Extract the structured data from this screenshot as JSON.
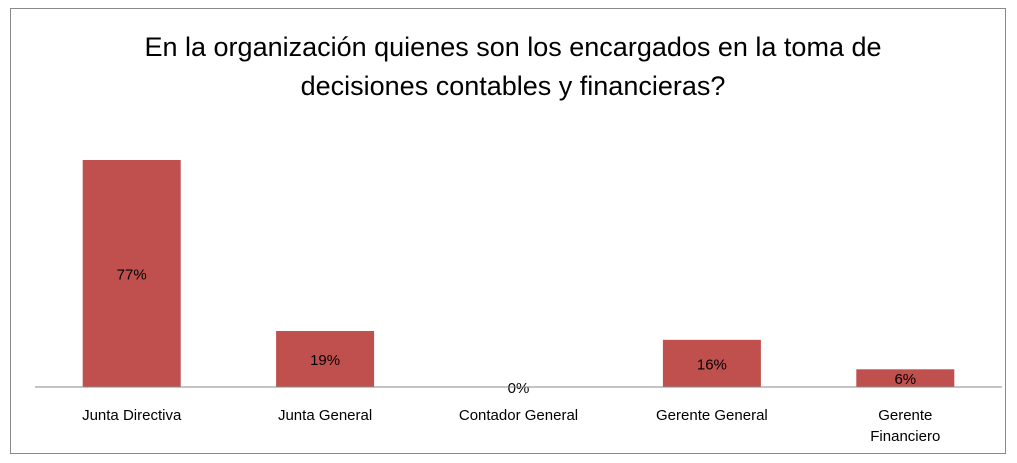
{
  "chart_data": {
    "type": "bar",
    "title": "En la organización quienes son los encargados en la toma de decisiones contables y financieras?",
    "categories": [
      "Junta Directiva",
      "Junta General",
      "Contador General",
      "Gerente General",
      "Gerente Financiero"
    ],
    "values": [
      77,
      19,
      0,
      16,
      6
    ],
    "value_labels": [
      "77%",
      "19%",
      "0%",
      "16%",
      "6%"
    ],
    "color": "#c0504d"
  }
}
